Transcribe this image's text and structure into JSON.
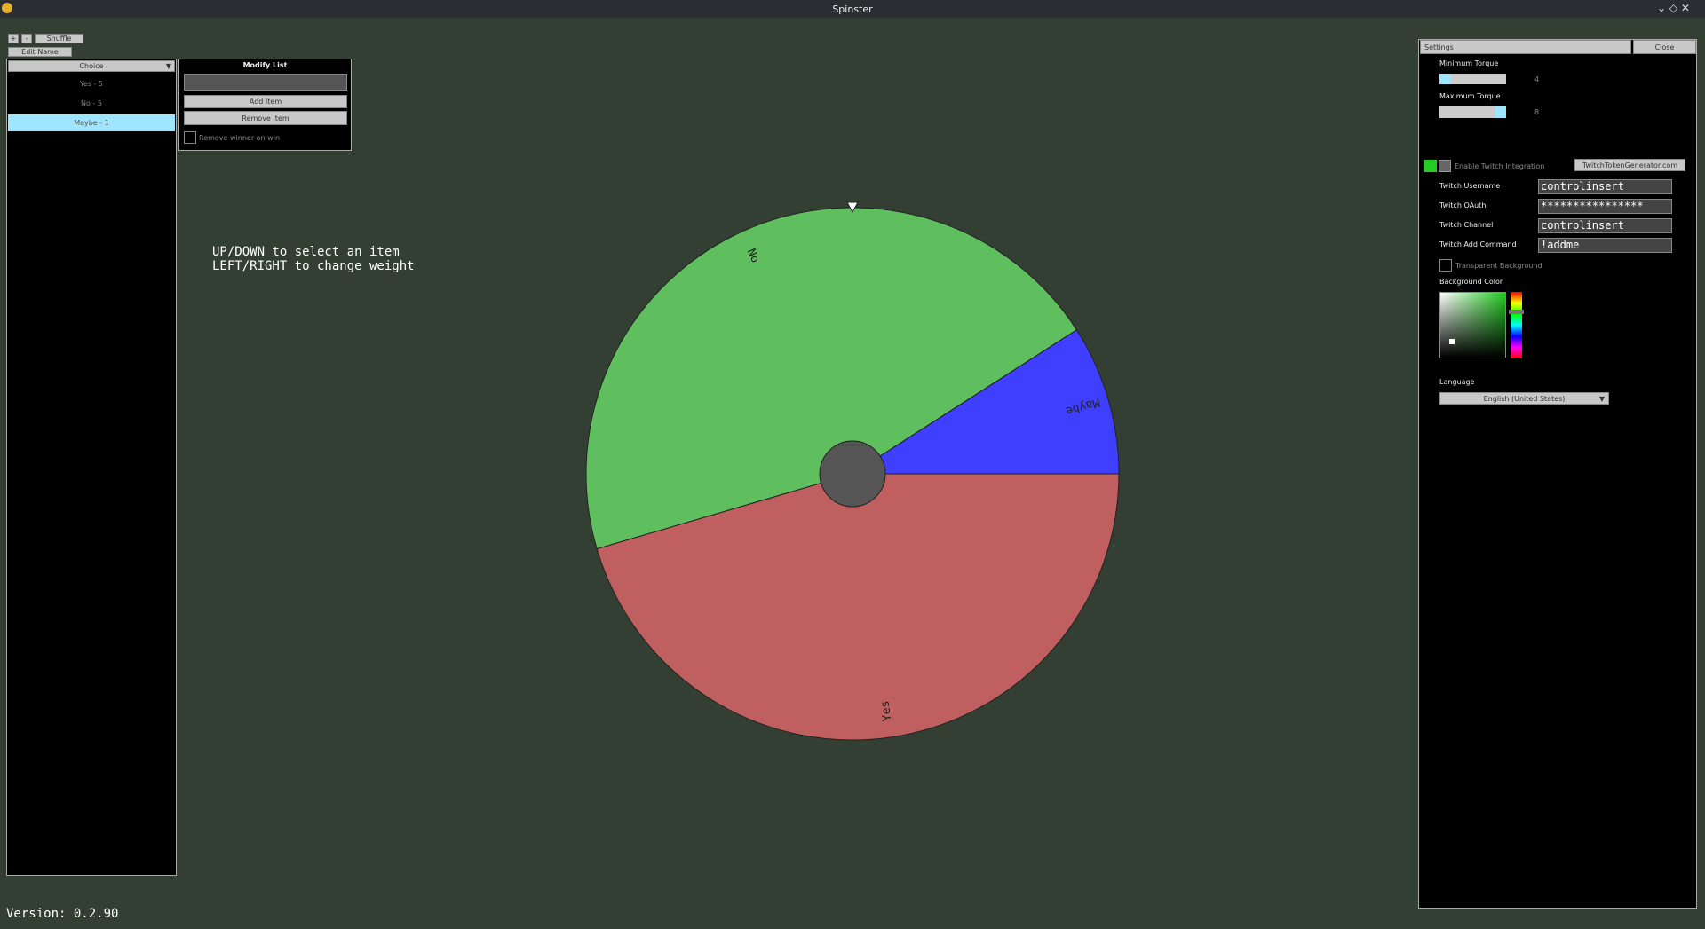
{
  "window": {
    "title": "Spinster"
  },
  "toolbar": {
    "add": "+",
    "remove": "-",
    "shuffle": "Shuffle",
    "edit_name": "Edit Name"
  },
  "list": {
    "dropdown": "Choice",
    "items": [
      "Yes - 5",
      "No - 5",
      "Maybe - 1"
    ]
  },
  "modify_list": {
    "title": "Modify List",
    "add_item": "Add Item",
    "remove_item": "Remove Item",
    "remove_winner": "Remove winner on win"
  },
  "instructions": [
    "UP/DOWN to select an item",
    "LEFT/RIGHT to change weight"
  ],
  "wheel": {
    "slices": [
      {
        "label": "Yes",
        "weight": 5,
        "color": "#bf5f5f"
      },
      {
        "label": "No",
        "weight": 5,
        "color": "#5fbf5f"
      },
      {
        "label": "Maybe",
        "weight": 1,
        "color": "#3f3fff"
      }
    ]
  },
  "version": "Version: 0.2.90",
  "settings": {
    "header": "Settings",
    "close": "Close",
    "min_torque": {
      "label": "Minimum Torque",
      "value": 4
    },
    "max_torque": {
      "label": "Maximum Torque",
      "value": 8
    },
    "twitch": {
      "enable": "Enable Twitch Integration",
      "token_link": "TwitchTokenGenerator.com",
      "fields": [
        {
          "label": "Twitch Username",
          "value": "controlinsert"
        },
        {
          "label": "Twitch OAuth",
          "value": "****************"
        },
        {
          "label": "Twitch Channel",
          "value": "controlinsert"
        },
        {
          "label": "Twitch Add Command",
          "value": "!addme"
        }
      ]
    },
    "transparent": "Transparent Background",
    "bg_color": "Background Color",
    "language": {
      "label": "Language",
      "value": "English (United States)"
    }
  }
}
